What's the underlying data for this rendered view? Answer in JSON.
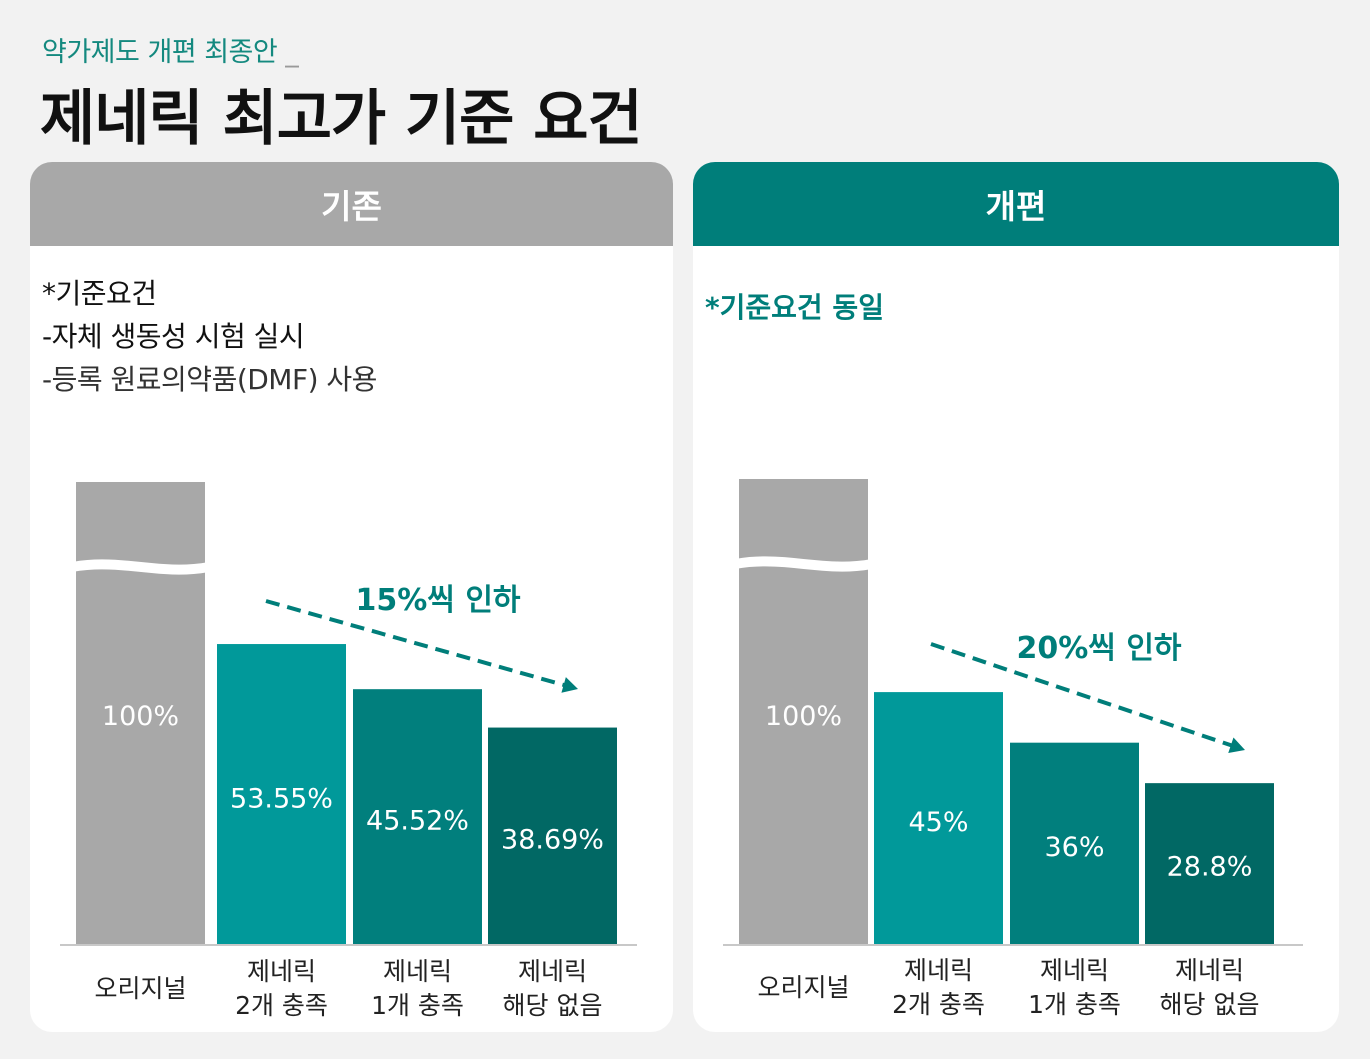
{
  "header": {
    "subtitle": "약가제도 개편 최종안",
    "subtitle_mark": "_",
    "title": "제네릭 최고가 기준 요건"
  },
  "panels": [
    {
      "header": "기존",
      "criteria": [
        "*기준요건",
        "-자체 생동성 시험 실시",
        "-등록 원료의약품(DMF) 사용"
      ],
      "annotation": "15%씩 인하"
    },
    {
      "header": "개편",
      "criteria": [
        "*기준요건 동일"
      ],
      "annotation": "20%씩 인하"
    }
  ],
  "chart_data": [
    {
      "type": "bar",
      "categories": [
        [
          "오리지널"
        ],
        [
          "제네릭",
          "2개 충족"
        ],
        [
          "제네릭",
          "1개 충족"
        ],
        [
          "제네릭",
          "해당 없음"
        ]
      ],
      "values": [
        100,
        53.55,
        45.52,
        38.69
      ],
      "labels": [
        "100%",
        "53.55%",
        "45.52%",
        "38.69%"
      ],
      "axis_break_on_first_bar": true,
      "colors": [
        "#a8a8a8",
        "#01999a",
        "#017f7d",
        "#016864"
      ]
    },
    {
      "type": "bar",
      "categories": [
        [
          "오리지널"
        ],
        [
          "제네릭",
          "2개 충족"
        ],
        [
          "제네릭",
          "1개 충족"
        ],
        [
          "제네릭",
          "해당 없음"
        ]
      ],
      "values": [
        100,
        45,
        36,
        28.8
      ],
      "labels": [
        "100%",
        "45%",
        "36%",
        "28.8%"
      ],
      "axis_break_on_first_bar": true,
      "colors": [
        "#a8a8a8",
        "#01999a",
        "#017f7d",
        "#016864"
      ]
    }
  ]
}
